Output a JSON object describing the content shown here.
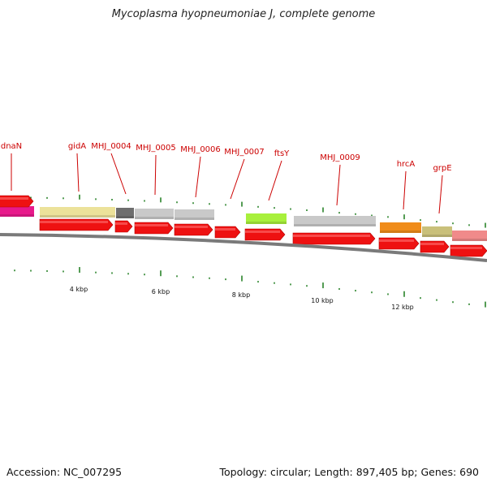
{
  "title": "Mycoplasma hyopneumoniae J, complete genome",
  "footer": {
    "accession": "Accession: NC_007295",
    "summary": "Topology: circular; Length: 897,405 bp; Genes: 690"
  },
  "colors": {
    "cds_arrow": "#ee1111",
    "label": "#cc0000",
    "tick": "#1a7a1a",
    "backbone": "#888888"
  },
  "genes": [
    {
      "name": "dnaN",
      "color": "#e8198b"
    },
    {
      "name": "gidA",
      "color": "#ece29a"
    },
    {
      "name": "MHJ_0004",
      "color": "#6e6e6e"
    },
    {
      "name": "MHJ_0005",
      "color": "#c9c9c9"
    },
    {
      "name": "MHJ_0006",
      "color": "#c9c9c9"
    },
    {
      "name": "MHJ_0007",
      "color": "#ffffff"
    },
    {
      "name": "ftsY",
      "color": "#a8f03c"
    },
    {
      "name": "MHJ_0009",
      "color": "#c9c9c9"
    },
    {
      "name": "hrcA",
      "color": "#f08c1a"
    },
    {
      "name": "grpE",
      "color": "#c9c07a"
    },
    {
      "name": "",
      "color": "#f08a8a"
    }
  ],
  "kbp_labels": [
    "4 kbp",
    "6 kbp",
    "8 kbp",
    "10 kbp",
    "12 kbp"
  ]
}
